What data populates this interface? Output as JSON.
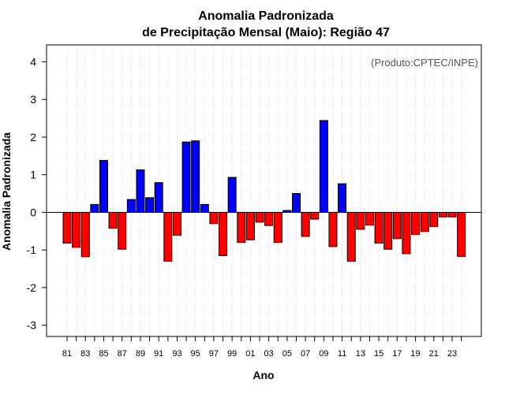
{
  "chart_data": {
    "type": "bar",
    "title": "Anomalia Padronizada",
    "subtitle": "de Precipitação Mensal (Maio): Região 47",
    "xlabel": "Ano",
    "ylabel": "Anomalia Padronizada",
    "annotation": "(Produto:CPTEC/INPE)",
    "ylim": [
      -3.3,
      4.45
    ],
    "yticks": [
      -3,
      -2,
      -1,
      0,
      1,
      2,
      3,
      4
    ],
    "ytick_labels": [
      "-3",
      "-2",
      "-1",
      "0",
      "1",
      "2",
      "3",
      "4"
    ],
    "x_tick_labels": [
      "81",
      "83",
      "85",
      "87",
      "89",
      "91",
      "93",
      "95",
      "97",
      "99",
      "01",
      "03",
      "05",
      "07",
      "09",
      "11",
      "13",
      "15",
      "17",
      "19",
      "21",
      "23"
    ],
    "grid": "vertical dotted",
    "positive_color": "#0000ff",
    "negative_color": "#ff0000",
    "x": [
      1981,
      1982,
      1983,
      1984,
      1985,
      1986,
      1987,
      1988,
      1989,
      1990,
      1991,
      1992,
      1993,
      1994,
      1995,
      1996,
      1997,
      1998,
      1999,
      2000,
      2001,
      2002,
      2003,
      2004,
      2005,
      2006,
      2007,
      2008,
      2009,
      2010,
      2011,
      2012,
      2013,
      2014,
      2015,
      2016,
      2017,
      2018,
      2019,
      2020,
      2021,
      2022,
      2023,
      2024
    ],
    "values": [
      -0.82,
      -0.93,
      -1.18,
      0.21,
      1.38,
      -0.42,
      -0.98,
      0.34,
      1.13,
      0.39,
      0.79,
      -1.3,
      -0.61,
      1.87,
      1.9,
      0.21,
      -0.3,
      -1.15,
      0.93,
      -0.8,
      -0.73,
      -0.26,
      -0.35,
      -0.8,
      0.05,
      0.5,
      -0.64,
      -0.18,
      2.44,
      -0.91,
      0.76,
      -1.3,
      -0.45,
      -0.34,
      -0.82,
      -0.98,
      -0.7,
      -1.1,
      -0.59,
      -0.51,
      -0.38,
      -0.12,
      -0.12,
      -1.17
    ]
  }
}
